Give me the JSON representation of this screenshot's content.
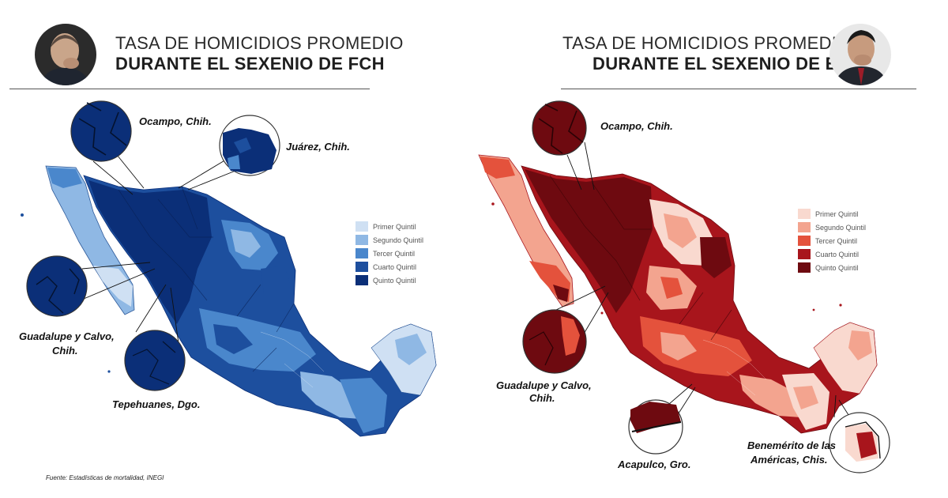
{
  "left_panel": {
    "title_line1": "TASA DE HOMICIDIOS PROMEDIO",
    "title_line2": "DURANTE EL SEXENIO DE FCH",
    "callouts": {
      "ocampo": "Ocampo, Chih.",
      "juarez": "Juárez, Chih.",
      "guadalupe_line1": "Guadalupe y Calvo,",
      "guadalupe_line2": "Chih.",
      "tepehuanes": "Tepehuanes, Dgo."
    },
    "legend": [
      {
        "label": "Primer Quintil",
        "color": "#cfe0f3"
      },
      {
        "label": "Segundo Quintil",
        "color": "#8fb8e4"
      },
      {
        "label": "Tercer Quintil",
        "color": "#4a87cc"
      },
      {
        "label": "Cuarto Quintil",
        "color": "#1d4f9e"
      },
      {
        "label": "Quinto Quintil",
        "color": "#0b2f78"
      }
    ],
    "source": "Fuente: Estadísticas de mortalidad, INEGI"
  },
  "right_panel": {
    "title_line1": "TASA DE HOMICIDIOS PROMEDIO",
    "title_line2": "DURANTE EL SEXENIO DE EPN",
    "callouts": {
      "ocampo": "Ocampo, Chih.",
      "guadalupe_line1": "Guadalupe y Calvo,",
      "guadalupe_line2": "Chih.",
      "acapulco": "Acapulco, Gro.",
      "benemerito_line1": "Benemérito de las",
      "benemerito_line2": "Américas, Chis."
    },
    "legend": [
      {
        "label": "Primer Quintil",
        "color": "#f9d9cf"
      },
      {
        "label": "Segundo Quintil",
        "color": "#f3a48f"
      },
      {
        "label": "Tercer Quintil",
        "color": "#e4523c"
      },
      {
        "label": "Cuarto Quintil",
        "color": "#a8151c"
      },
      {
        "label": "Quinto Quintil",
        "color": "#6e0a10"
      }
    ]
  }
}
